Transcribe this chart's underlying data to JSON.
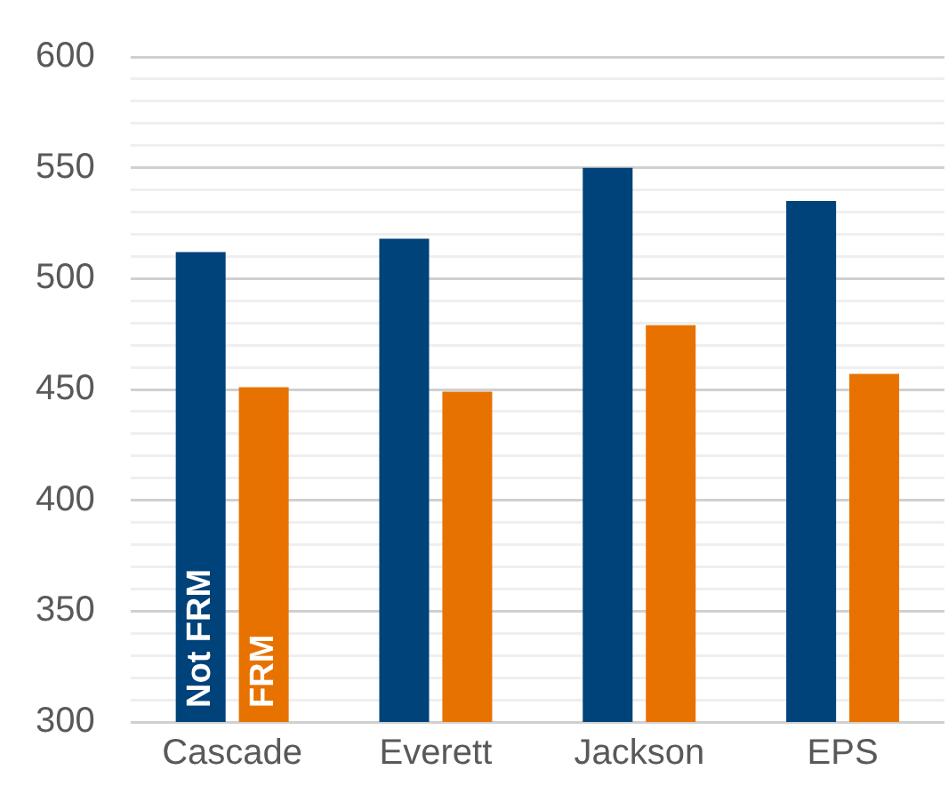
{
  "chart_data": {
    "type": "bar",
    "categories": [
      "Cascade",
      "Everett",
      "Jackson",
      "EPS"
    ],
    "series": [
      {
        "name": "Not FRM",
        "color": "#00427a",
        "values": [
          512,
          518,
          550,
          535
        ]
      },
      {
        "name": "FRM",
        "color": "#e87200",
        "values": [
          451,
          449,
          479,
          457
        ]
      }
    ],
    "ylim": [
      300,
      600
    ],
    "yticks": [
      300,
      {
        "value": 310,
        "label": null
      },
      {
        "value": 320,
        "label": null
      },
      {
        "value": 330,
        "label": null
      },
      {
        "value": 340,
        "label": null
      },
      350,
      {
        "value": 360,
        "label": null
      },
      {
        "value": 370,
        "label": null
      },
      {
        "value": 380,
        "label": null
      },
      {
        "value": 390,
        "label": null
      },
      400,
      {
        "value": 410,
        "label": null
      },
      {
        "value": 420,
        "label": null
      },
      {
        "value": 430,
        "label": null
      },
      {
        "value": 440,
        "label": null
      },
      450,
      {
        "value": 460,
        "label": null
      },
      {
        "value": 470,
        "label": null
      },
      {
        "value": 480,
        "label": null
      },
      {
        "value": 490,
        "label": null
      },
      500,
      {
        "value": 510,
        "label": null
      },
      {
        "value": 520,
        "label": null
      },
      {
        "value": 530,
        "label": null
      },
      {
        "value": 540,
        "label": null
      },
      550,
      {
        "value": 560,
        "label": null
      },
      {
        "value": 570,
        "label": null
      },
      {
        "value": 580,
        "label": null
      },
      {
        "value": 590,
        "label": null
      },
      600
    ],
    "grid": "y",
    "legend": false
  }
}
